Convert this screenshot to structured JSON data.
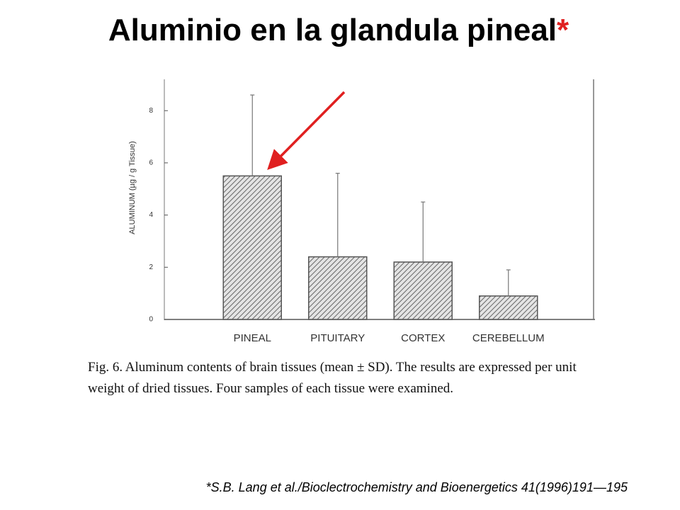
{
  "title": "Aluminio en la glandula pineal",
  "title_mark": "*",
  "chart_data": {
    "type": "bar",
    "y_label": "ALUMINUM (µg / g Tissue)",
    "categories": [
      "PINEAL",
      "PITUITARY",
      "CORTEX",
      "CEREBELLUM"
    ],
    "values": [
      5.5,
      2.4,
      2.2,
      0.9
    ],
    "errors": [
      3.1,
      3.2,
      2.3,
      1.0
    ],
    "color": "#555555",
    "ylim": [
      0,
      9.2
    ],
    "yticks": [
      0,
      2,
      4,
      6,
      8
    ]
  },
  "caption": "Fig. 6. Aluminum contents of brain tissues (mean ± SD). The results are expressed per unit weight of dried tissues. Four samples of each tissue were examined.",
  "citation": "*S.B. Lang et al./Bioclectrochemistry and Bioenergetics 41(1996)191—195"
}
